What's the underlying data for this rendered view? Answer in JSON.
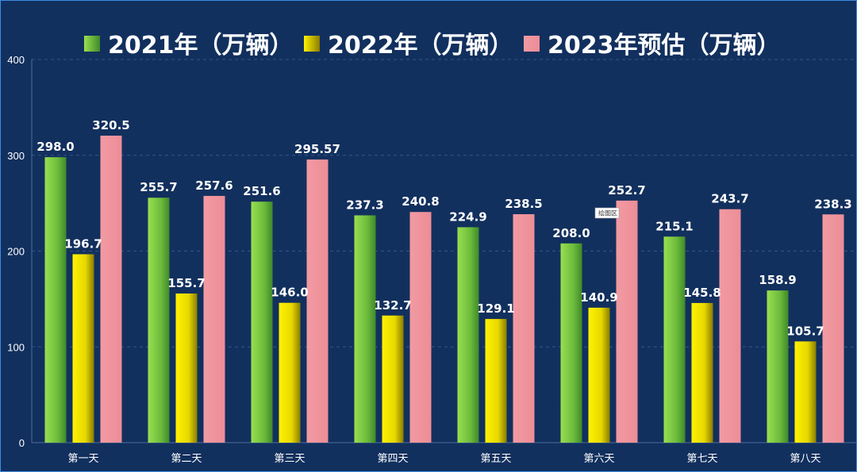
{
  "chart_data": {
    "type": "bar",
    "categories": [
      "第一天",
      "第二天",
      "第三天",
      "第四天",
      "第五天",
      "第六天",
      "第七天",
      "第八天"
    ],
    "series": [
      {
        "name": "2021年（万辆）",
        "values": [
          298.0,
          255.7,
          251.6,
          237.3,
          224.9,
          208.0,
          215.1,
          158.9
        ],
        "labels": [
          "298.0",
          "255.7",
          "251.6",
          "237.3",
          "224.9",
          "208.0",
          "215.1",
          "158.9"
        ]
      },
      {
        "name": "2022年（万辆）",
        "values": [
          196.7,
          155.7,
          146.0,
          132.7,
          129.1,
          140.9,
          145.8,
          105.7
        ],
        "labels": [
          "196.7",
          "155.7",
          "146.0",
          "132.7",
          "129.1",
          "140.9",
          "145.8",
          "105.7"
        ]
      },
      {
        "name": "2023年预估（万辆）",
        "values": [
          320.5,
          257.6,
          295.57,
          240.8,
          238.5,
          252.7,
          243.7,
          238.3
        ],
        "labels": [
          "320.5",
          "257.6",
          "295.57",
          "240.8",
          "238.5",
          "252.7",
          "243.7",
          "238.3"
        ]
      }
    ],
    "yticks": [
      "0",
      "100",
      "200",
      "300",
      "400"
    ],
    "ylim": [
      0,
      400
    ],
    "grid": true,
    "legend_position": "top",
    "colors": [
      "#7fd04a",
      "#f5ea00",
      "#f0959e"
    ]
  },
  "tooltip": {
    "text": "绘图区"
  }
}
